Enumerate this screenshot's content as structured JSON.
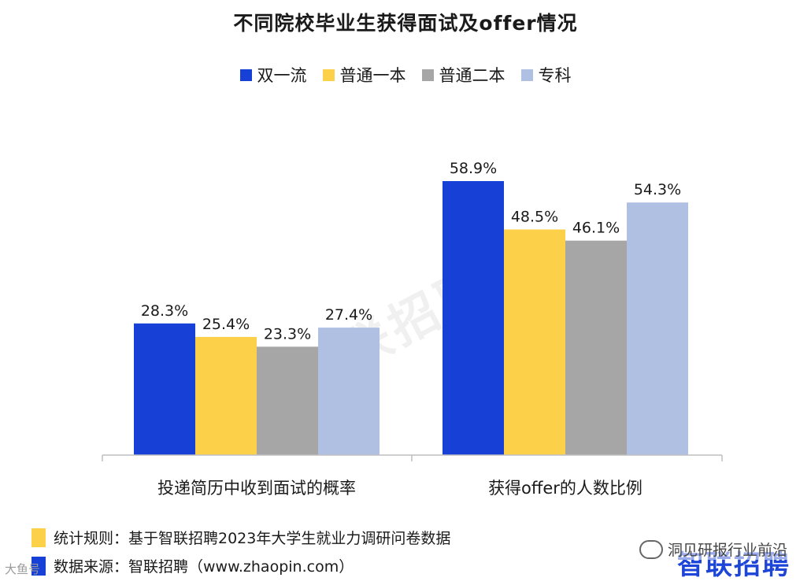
{
  "chart_data": {
    "type": "bar",
    "title": "不同院校毕业生获得面试及offer情况",
    "categories": [
      "投递简历中收到面试的概率",
      "获得offer的人数比例"
    ],
    "series": [
      {
        "name": "双一流",
        "color": "#1640d6",
        "values": [
          28.3,
          58.9
        ],
        "labels": [
          "28.3%",
          "58.9%"
        ]
      },
      {
        "name": "普通一本",
        "color": "#fdd04a",
        "values": [
          25.4,
          48.5
        ],
        "labels": [
          "25.4%",
          "48.5%"
        ]
      },
      {
        "name": "普通二本",
        "color": "#a6a6a6",
        "values": [
          23.3,
          46.1
        ],
        "labels": [
          "23.3%",
          "46.1%"
        ]
      },
      {
        "name": "专科",
        "color": "#b0c0e2",
        "values": [
          27.4,
          54.3
        ],
        "labels": [
          "27.4%",
          "54.3%"
        ]
      }
    ],
    "ylim": [
      0,
      60
    ],
    "grid": false,
    "legend_position": "top-center"
  },
  "footer": {
    "rule_text": "统计规则：基于智联招聘2023年大学生就业力调研问卷数据",
    "rule_color": "#fdd04a",
    "source_text": "数据来源：智联招聘（www.zhaopin.com）",
    "source_color": "#1640d6"
  },
  "watermark_text": "智联招聘",
  "brand_logo_text": "智联招聘",
  "wechat_text": "洞见研报行业前沿",
  "corner_text": "大鱼号"
}
